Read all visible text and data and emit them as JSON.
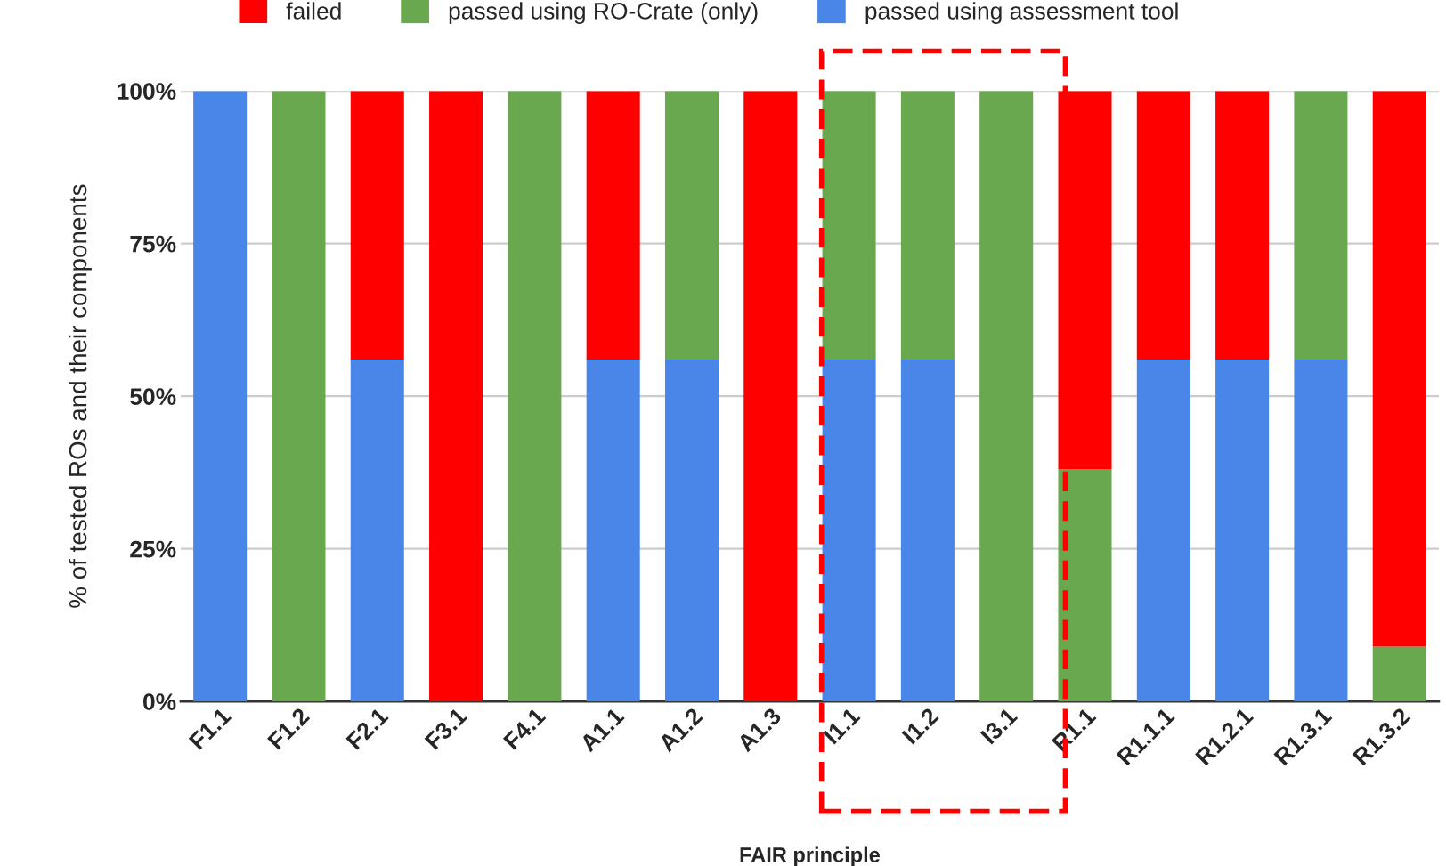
{
  "chart_data": {
    "type": "bar",
    "stacked": true,
    "xlabel": "FAIR principle",
    "ylabel": "% of tested ROs and their components",
    "categories": [
      "F1.1",
      "F1.2",
      "F2.1",
      "F3.1",
      "F4.1",
      "A1.1",
      "A1.2",
      "A1.3",
      "I1.1",
      "I1.2",
      "I3.1",
      "R1.1",
      "R1.1.1",
      "R1.2.1",
      "R1.3.1",
      "R1.3.2"
    ],
    "series": [
      {
        "name": "passed using assessment tool",
        "color": "#4a86e8",
        "values": [
          100,
          0,
          56,
          0,
          0,
          56,
          56,
          0,
          56,
          56,
          0,
          0,
          56,
          56,
          56,
          0
        ]
      },
      {
        "name": "passed using RO-Crate (only)",
        "color": "#6aa84f",
        "values": [
          0,
          100,
          0,
          0,
          100,
          0,
          44,
          0,
          44,
          44,
          100,
          38,
          0,
          0,
          44,
          9
        ]
      },
      {
        "name": "failed",
        "color": "#ff0000",
        "values": [
          0,
          0,
          44,
          100,
          0,
          44,
          0,
          100,
          0,
          0,
          0,
          62,
          44,
          44,
          0,
          91
        ]
      }
    ],
    "ylim": [
      0,
      100
    ],
    "yticks": [
      {
        "value": 0,
        "label": "0%"
      },
      {
        "value": 25,
        "label": "25%"
      },
      {
        "value": 50,
        "label": "50%"
      },
      {
        "value": 75,
        "label": "75%"
      },
      {
        "value": 100,
        "label": "100%"
      }
    ],
    "grid": "y",
    "legend": "top"
  }
}
